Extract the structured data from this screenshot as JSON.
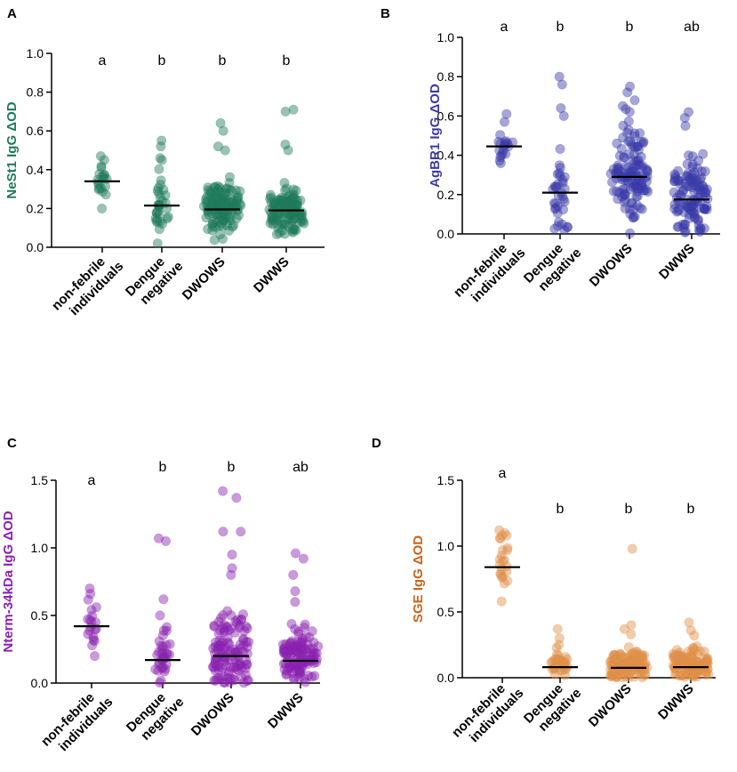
{
  "chart_data": [
    {
      "type": "scatter",
      "panel": "A",
      "ylabel": "NeSt1 IgG ΔOD",
      "ylim": [
        0,
        1.0
      ],
      "yticks": [
        "0.0",
        "0.2",
        "0.4",
        "0.6",
        "0.8",
        "1.0"
      ],
      "color": "#1e7a5a",
      "categories": [
        {
          "line1": "non-febrile",
          "line2": "individuals"
        },
        {
          "line1": "Dengue",
          "line2": "negative"
        },
        {
          "line1": "DWOWS",
          "line2": ""
        },
        {
          "line1": "DWWS",
          "line2": ""
        }
      ],
      "sig_letters": [
        "a",
        "b",
        "b",
        "b"
      ],
      "medians": [
        0.34,
        0.215,
        0.195,
        0.19
      ],
      "series": [
        {
          "name": "non-febrile individuals",
          "n": 20,
          "mean": 0.34,
          "spread": 0.05,
          "min": 0.2,
          "max": 0.47,
          "extremes": [
            0.47,
            0.45,
            0.2
          ]
        },
        {
          "name": "Dengue negative",
          "n": 35,
          "mean": 0.22,
          "spread": 0.1,
          "min": 0.02,
          "max": 0.55,
          "extremes": [
            0.55,
            0.52,
            0.46,
            0.45,
            0.02
          ]
        },
        {
          "name": "DWOWS",
          "n": 130,
          "mean": 0.2,
          "spread": 0.09,
          "min": 0.02,
          "max": 0.64,
          "extremes": [
            0.64,
            0.6,
            0.52,
            0.5
          ]
        },
        {
          "name": "DWWS",
          "n": 120,
          "mean": 0.19,
          "spread": 0.09,
          "min": 0.0,
          "max": 0.71,
          "extremes": [
            0.71,
            0.7,
            0.53,
            0.5
          ]
        }
      ]
    },
    {
      "type": "scatter",
      "panel": "B",
      "ylabel": "AgBR1 IgG ΔOD",
      "ylim": [
        0,
        1.0
      ],
      "yticks": [
        "0.0",
        "0.2",
        "0.4",
        "0.6",
        "0.8",
        "1.0"
      ],
      "color": "#3a3aa8",
      "categories": [
        {
          "line1": "non-febrile",
          "line2": "individuals"
        },
        {
          "line1": "Dengue",
          "line2": "negative"
        },
        {
          "line1": "DWOWS",
          "line2": ""
        },
        {
          "line1": "DWWS",
          "line2": ""
        }
      ],
      "sig_letters": [
        "a",
        "b",
        "b",
        "ab"
      ],
      "medians": [
        0.445,
        0.21,
        0.29,
        0.175
      ],
      "series": [
        {
          "name": "non-febrile individuals",
          "n": 20,
          "mean": 0.45,
          "spread": 0.05,
          "min": 0.35,
          "max": 0.61,
          "extremes": [
            0.61,
            0.57,
            0.36
          ]
        },
        {
          "name": "Dengue negative",
          "n": 38,
          "mean": 0.23,
          "spread": 0.15,
          "min": 0.02,
          "max": 0.8,
          "extremes": [
            0.8,
            0.76,
            0.64,
            0.6,
            0.02
          ]
        },
        {
          "name": "DWOWS",
          "n": 130,
          "mean": 0.3,
          "spread": 0.17,
          "min": 0.0,
          "max": 0.75,
          "extremes": [
            0.75,
            0.72,
            0.68,
            0.65
          ]
        },
        {
          "name": "DWWS",
          "n": 120,
          "mean": 0.2,
          "spread": 0.14,
          "min": 0.0,
          "max": 0.62,
          "extremes": [
            0.62,
            0.59,
            0.55
          ]
        }
      ]
    },
    {
      "type": "scatter",
      "panel": "C",
      "ylabel": "Nterm-34kDa IgG ΔOD",
      "ylim": [
        0,
        1.5
      ],
      "yticks": [
        "0.0",
        "0.5",
        "1.0",
        "1.5"
      ],
      "color": "#8a22b0",
      "categories": [
        {
          "line1": "non-febrile",
          "line2": "individuals"
        },
        {
          "line1": "Dengue",
          "line2": "negative"
        },
        {
          "line1": "DWOWS",
          "line2": ""
        },
        {
          "line1": "DWWS",
          "line2": ""
        }
      ],
      "sig_letters": [
        "a",
        "b",
        "b",
        "ab"
      ],
      "medians": [
        0.42,
        0.17,
        0.2,
        0.165
      ],
      "series": [
        {
          "name": "non-febrile individuals",
          "n": 20,
          "mean": 0.43,
          "spread": 0.12,
          "min": 0.2,
          "max": 0.7,
          "extremes": [
            0.7,
            0.66,
            0.2
          ]
        },
        {
          "name": "Dengue negative",
          "n": 36,
          "mean": 0.2,
          "spread": 0.13,
          "min": 0.0,
          "max": 1.07,
          "extremes": [
            1.07,
            1.05,
            0.62,
            0.5
          ]
        },
        {
          "name": "DWOWS",
          "n": 130,
          "mean": 0.24,
          "spread": 0.2,
          "min": 0.0,
          "max": 1.42,
          "extremes": [
            1.42,
            1.37,
            1.12,
            1.12,
            0.95,
            0.85,
            0.8
          ]
        },
        {
          "name": "DWWS",
          "n": 120,
          "mean": 0.2,
          "spread": 0.15,
          "min": 0.0,
          "max": 0.96,
          "extremes": [
            0.96,
            0.92,
            0.8,
            0.68,
            0.6
          ]
        }
      ]
    },
    {
      "type": "scatter",
      "panel": "D",
      "ylabel": "SGE IgG ΔOD",
      "ylim": [
        0,
        1.5
      ],
      "yticks": [
        "0.0",
        "0.5",
        "1.0",
        "1.5"
      ],
      "color": "#e0904a",
      "label_color": "#c8641a",
      "categories": [
        {
          "line1": "non-febrile",
          "line2": "individuals"
        },
        {
          "line1": "Dengue",
          "line2": "negative"
        },
        {
          "line1": "DWOWS",
          "line2": ""
        },
        {
          "line1": "DWWS",
          "line2": ""
        }
      ],
      "sig_letters": [
        "a",
        "b",
        "b",
        "b"
      ],
      "medians": [
        0.84,
        0.08,
        0.075,
        0.08
      ],
      "series": [
        {
          "name": "non-febrile individuals",
          "n": 24,
          "mean": 0.86,
          "spread": 0.16,
          "min": 0.58,
          "max": 1.12,
          "extremes": [
            1.12,
            1.1,
            1.08,
            1.08,
            0.58
          ]
        },
        {
          "name": "Dengue negative",
          "n": 36,
          "mean": 0.1,
          "spread": 0.07,
          "min": 0.0,
          "max": 0.37,
          "extremes": [
            0.37,
            0.3,
            0.25
          ]
        },
        {
          "name": "DWOWS",
          "n": 130,
          "mean": 0.1,
          "spread": 0.08,
          "min": 0.0,
          "max": 0.98,
          "extremes": [
            0.98,
            0.4,
            0.37,
            0.33
          ]
        },
        {
          "name": "DWWS",
          "n": 120,
          "mean": 0.1,
          "spread": 0.08,
          "min": 0.0,
          "max": 0.42,
          "extremes": [
            0.42,
            0.36,
            0.32
          ]
        }
      ]
    }
  ]
}
